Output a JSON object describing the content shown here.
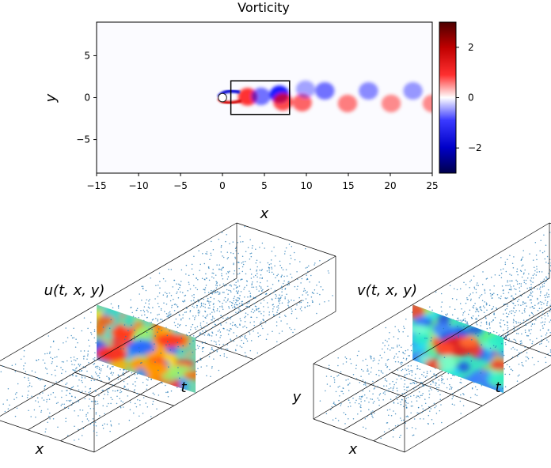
{
  "chart_data": [
    {
      "type": "heatmap",
      "title": "Vorticity",
      "xlabel": "x",
      "ylabel": "y",
      "xlim": [
        -15,
        25
      ],
      "ylim": [
        -9,
        9
      ],
      "xticks": [
        -15,
        -10,
        -5,
        0,
        5,
        10,
        15,
        20,
        25
      ],
      "yticks": [
        5,
        0,
        -5
      ],
      "colormap": "seismic",
      "colorbar": {
        "range": [
          -3,
          3
        ],
        "ticks": [
          2,
          0,
          -2
        ]
      },
      "cylinder": {
        "center": [
          0,
          0
        ],
        "radius": 0.5
      },
      "inset_box": {
        "x": [
          1,
          8
        ],
        "y": [
          -2,
          2
        ]
      },
      "vortices": [
        {
          "x": 3.0,
          "y": 0.1,
          "sign": 1,
          "strength": 0.8
        },
        {
          "x": 4.6,
          "y": 0.15,
          "sign": -1,
          "strength": 0.55
        },
        {
          "x": 6.8,
          "y": 0.4,
          "sign": -1,
          "strength": 0.9
        },
        {
          "x": 7.2,
          "y": -0.5,
          "sign": 1,
          "strength": 0.7
        },
        {
          "x": 9.5,
          "y": -0.6,
          "sign": 1,
          "strength": 0.6
        },
        {
          "x": 9.9,
          "y": 1.0,
          "sign": -1,
          "strength": 0.35
        },
        {
          "x": 12.2,
          "y": 0.8,
          "sign": -1,
          "strength": 0.55
        },
        {
          "x": 14.9,
          "y": -0.7,
          "sign": 1,
          "strength": 0.5
        },
        {
          "x": 17.4,
          "y": 0.8,
          "sign": -1,
          "strength": 0.45
        },
        {
          "x": 20.1,
          "y": -0.7,
          "sign": 1,
          "strength": 0.45
        },
        {
          "x": 22.7,
          "y": 0.8,
          "sign": -1,
          "strength": 0.4
        },
        {
          "x": 25.0,
          "y": -0.7,
          "sign": 1,
          "strength": 0.45
        }
      ]
    },
    {
      "type": "scatter",
      "title": "u(t, x, y)",
      "variable": "u",
      "axis_labels": {
        "x": "x",
        "y": "",
        "t": "t"
      },
      "colormap": "jet"
    },
    {
      "type": "scatter",
      "title": "v(t, x, y)",
      "variable": "v",
      "axis_labels": {
        "x": "x",
        "y": "y",
        "t": "t"
      },
      "colormap": "jet"
    }
  ],
  "colors": {
    "scatter_point": "#1f77b4",
    "box_line": "#000000"
  }
}
